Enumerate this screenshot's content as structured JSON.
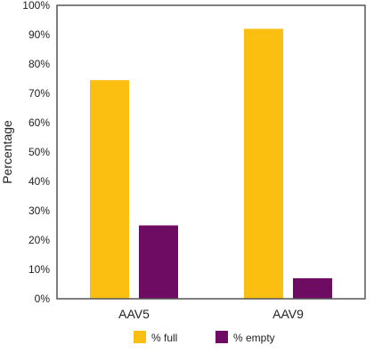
{
  "chart_data": {
    "type": "bar",
    "categories": [
      "AAV5",
      "AAV9"
    ],
    "series": [
      {
        "name": "% full",
        "values": [
          74.5,
          92
        ],
        "color": "#FBBF12"
      },
      {
        "name": "% empty",
        "values": [
          25,
          7
        ],
        "color": "#6E0B63"
      }
    ],
    "ylabel": "Percentage",
    "ylim": [
      0,
      100
    ],
    "yticks": [
      0,
      10,
      20,
      30,
      40,
      50,
      60,
      70,
      80,
      90,
      100
    ],
    "ytick_labels": [
      "0%",
      "10%",
      "20%",
      "30%",
      "40%",
      "50%",
      "60%",
      "70%",
      "80%",
      "90%",
      "100%"
    ],
    "grid": false,
    "legend_position": "bottom-center",
    "frame_color": "#555555"
  }
}
